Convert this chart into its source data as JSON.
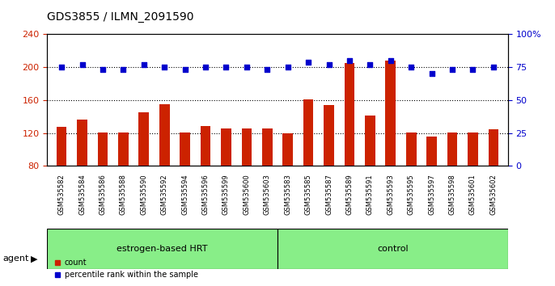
{
  "title": "GDS3855 / ILMN_2091590",
  "samples": [
    "GSM535582",
    "GSM535584",
    "GSM535586",
    "GSM535588",
    "GSM535590",
    "GSM535592",
    "GSM535594",
    "GSM535596",
    "GSM535599",
    "GSM535600",
    "GSM535603",
    "GSM535583",
    "GSM535585",
    "GSM535587",
    "GSM535589",
    "GSM535591",
    "GSM535593",
    "GSM535595",
    "GSM535597",
    "GSM535598",
    "GSM535601",
    "GSM535602"
  ],
  "counts": [
    127,
    136,
    121,
    121,
    145,
    155,
    121,
    128,
    126,
    126,
    126,
    120,
    161,
    154,
    205,
    141,
    208,
    121,
    116,
    121,
    121,
    125
  ],
  "percentile_ranks": [
    75,
    77,
    73,
    73,
    77,
    75,
    73,
    75,
    75,
    75,
    73,
    75,
    79,
    77,
    80,
    77,
    80,
    75,
    70,
    73,
    73,
    75
  ],
  "group1_label": "estrogen-based HRT",
  "group2_label": "control",
  "group1_count": 11,
  "group2_count": 11,
  "ylim_left": [
    80,
    240
  ],
  "ylim_right": [
    0,
    100
  ],
  "yticks_left": [
    80,
    120,
    160,
    200,
    240
  ],
  "yticks_right": [
    0,
    25,
    50,
    75,
    100
  ],
  "bar_color": "#cc2200",
  "dot_color": "#0000cc",
  "bg_color": "#f0f0f0",
  "group_bg": "#88ee88",
  "legend_count_label": "count",
  "legend_pct_label": "percentile rank within the sample",
  "agent_label": "agent"
}
